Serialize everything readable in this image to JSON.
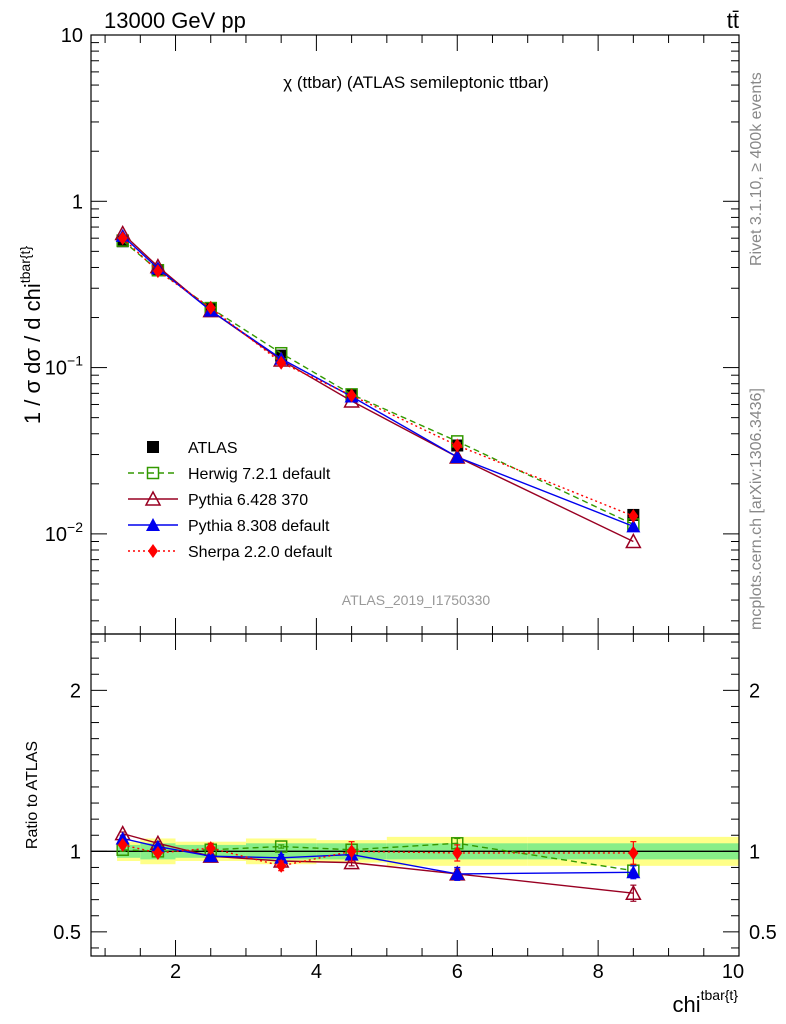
{
  "header": {
    "energy_label": "13000 GeV pp",
    "process_label": "tt̄"
  },
  "side_labels": {
    "rivet": "Rivet 3.1.10, ≥ 400k events",
    "mcplots": "mcplots.cern.ch [arXiv:1306.3436]"
  },
  "chart_data": [
    {
      "id": "main",
      "type": "scatter",
      "title": "χ (ttbar) (ATLAS semileptonic ttbar)",
      "watermark": "ATLAS_2019_I1750330",
      "ylabel": "1 / σ dσ / d chi^{tbar{t}}",
      "xlabel": "chi^{tbar{t}}",
      "y_scale": "log",
      "xlim": [
        0.8,
        10
      ],
      "ylim": [
        0.0025,
        10
      ],
      "y_ticks": [
        "10^{-2}",
        "10^{-1}",
        "1",
        "10"
      ],
      "x": [
        1.25,
        1.75,
        2.5,
        3.5,
        4.5,
        6.0,
        8.5
      ],
      "legend_position": "bottom-left",
      "series": [
        {
          "name": "ATLAS",
          "color": "#000000",
          "marker": "square-filled",
          "line": "none",
          "values": [
            0.575,
            0.385,
            0.226,
            0.118,
            0.068,
            0.034,
            0.013
          ]
        },
        {
          "name": "Herwig 7.2.1 default",
          "color": "#339900",
          "marker": "square-open",
          "line": "dashed",
          "values": [
            0.58,
            0.385,
            0.228,
            0.122,
            0.069,
            0.036,
            0.0114
          ]
        },
        {
          "name": "Pythia 6.428 370",
          "color": "#990022",
          "marker": "triangle-open",
          "line": "solid",
          "values": [
            0.64,
            0.405,
            0.22,
            0.111,
            0.063,
            0.029,
            0.009
          ]
        },
        {
          "name": "Pythia 8.308 default",
          "color": "#0000ee",
          "marker": "triangle-filled",
          "line": "solid",
          "values": [
            0.62,
            0.395,
            0.22,
            0.113,
            0.067,
            0.029,
            0.0111
          ]
        },
        {
          "name": "Sherpa 2.2.0 default",
          "color": "#ff0000",
          "marker": "diamond-filled",
          "line": "dotted",
          "values": [
            0.6,
            0.38,
            0.229,
            0.107,
            0.068,
            0.034,
            0.0128
          ]
        }
      ]
    },
    {
      "id": "ratio",
      "type": "scatter",
      "ylabel": "Ratio to ATLAS",
      "xlabel": "chi^{tbar{t}}",
      "xlim": [
        0.8,
        10
      ],
      "ylim": [
        0.35,
        2.35
      ],
      "y_ticks": [
        0.5,
        1,
        2
      ],
      "x_ticks": [
        2,
        4,
        6,
        8,
        10
      ],
      "x": [
        1.25,
        1.75,
        2.5,
        3.5,
        4.5,
        6.0,
        8.5
      ],
      "bins": [
        [
          1.0,
          1.5
        ],
        [
          1.5,
          2.0
        ],
        [
          2.0,
          3.0
        ],
        [
          3.0,
          4.0
        ],
        [
          4.0,
          5.0
        ],
        [
          5.0,
          7.0
        ],
        [
          7.0,
          10.0
        ]
      ],
      "band_inner": [
        0.04,
        0.05,
        0.04,
        0.05,
        0.05,
        0.05,
        0.05
      ],
      "band_outer": [
        0.06,
        0.08,
        0.06,
        0.08,
        0.07,
        0.09,
        0.09
      ],
      "series": [
        {
          "name": "Herwig 7.2.1 default",
          "color": "#339900",
          "marker": "square-open",
          "line": "dashed",
          "values": [
            1.01,
            1.0,
            1.01,
            1.03,
            1.01,
            1.05,
            0.88
          ],
          "errors": [
            0.01,
            0.01,
            0.01,
            0.01,
            0.01,
            0.03,
            0.03
          ]
        },
        {
          "name": "Pythia 6.428 370",
          "color": "#990022",
          "marker": "triangle-open",
          "line": "solid",
          "values": [
            1.11,
            1.05,
            0.97,
            0.94,
            0.93,
            0.86,
            0.74
          ],
          "errors": [
            0.01,
            0.01,
            0.01,
            0.01,
            0.02,
            0.03,
            0.05
          ]
        },
        {
          "name": "Pythia 8.308 default",
          "color": "#0000ee",
          "marker": "triangle-filled",
          "line": "solid",
          "values": [
            1.08,
            1.03,
            0.97,
            0.96,
            0.98,
            0.86,
            0.87
          ],
          "errors": [
            0.01,
            0.01,
            0.01,
            0.02,
            0.02,
            0.04,
            0.04
          ]
        },
        {
          "name": "Sherpa 2.2.0 default",
          "color": "#ff0000",
          "marker": "diamond-filled",
          "line": "dotted",
          "values": [
            1.04,
            0.99,
            1.02,
            0.91,
            1.0,
            0.99,
            0.99
          ],
          "errors": [
            0.01,
            0.01,
            0.03,
            0.03,
            0.06,
            0.05,
            0.07
          ]
        }
      ]
    }
  ]
}
